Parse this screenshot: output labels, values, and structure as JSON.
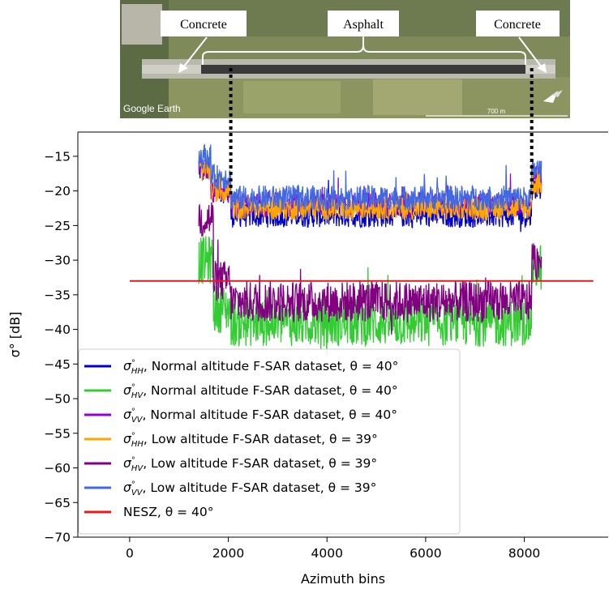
{
  "photo": {
    "labels": {
      "left": "Concrete",
      "middle": "Asphalt",
      "right": "Concrete"
    },
    "watermark": "Google Earth",
    "scale_label": "700 m"
  },
  "chart_data": {
    "type": "line",
    "xlabel": "Azimuth bins",
    "ylabel": "σ° [dB]",
    "xlim": [
      -1050,
      9700
    ],
    "ylim": [
      -70,
      -11.5
    ],
    "xticks": [
      0,
      2000,
      4000,
      6000,
      8000
    ],
    "yticks": [
      -15,
      -20,
      -25,
      -30,
      -35,
      -40,
      -45,
      -50,
      -55,
      -60,
      -65,
      -70
    ],
    "x_range": [
      1400,
      8350
    ],
    "legend_position": "lower-left",
    "vertical_dotted_markers_x": [
      2050,
      8150
    ],
    "series": [
      {
        "name": "σ°HH, Normal altitude F-SAR dataset, θ = 40°",
        "legend_sub": "HH",
        "legend_text": ", Normal altitude F-SAR dataset, ",
        "legend_theta": "θ = 40°",
        "color": "#0000cd",
        "segments": [
          [
            1400,
            1650,
            -17
          ],
          [
            1650,
            2050,
            -20
          ],
          [
            2050,
            8150,
            -23.5
          ],
          [
            8150,
            8350,
            -19.5
          ]
        ],
        "spread": 1.8
      },
      {
        "name": "σ°HV, Normal altitude F-SAR dataset, θ = 40°",
        "legend_sub": "HV",
        "legend_text": ", Normal altitude F-SAR dataset, ",
        "legend_theta": "θ = 40°",
        "color": "#33cc33",
        "segments": [
          [
            1400,
            1700,
            -30
          ],
          [
            1700,
            2050,
            -37
          ],
          [
            2050,
            8150,
            -39
          ],
          [
            8150,
            8350,
            -31
          ]
        ],
        "spread": 3.5
      },
      {
        "name": "σ°VV, Normal altitude F-SAR dataset, θ = 40°",
        "legend_sub": "VV",
        "legend_text": ", Normal altitude F-SAR dataset, ",
        "legend_theta": "θ = 40°",
        "color": "#9400d3",
        "segments": [
          [
            1400,
            1650,
            -17
          ],
          [
            1650,
            2050,
            -20
          ],
          [
            2050,
            8150,
            -22
          ],
          [
            8150,
            8350,
            -18
          ]
        ],
        "spread": 1.8
      },
      {
        "name": "σ°HH, Low altitude F-SAR dataset, θ = 39°",
        "legend_sub": "HH",
        "legend_text": ", Low altitude F-SAR dataset, ",
        "legend_theta": "θ = 39°",
        "color": "#ffa500",
        "segments": [
          [
            1400,
            1650,
            -17
          ],
          [
            1650,
            2050,
            -20
          ],
          [
            2050,
            8150,
            -22.5
          ],
          [
            8150,
            8350,
            -19
          ]
        ],
        "spread": 1.7
      },
      {
        "name": "σ°HV, Low altitude F-SAR dataset, θ = 39°",
        "legend_sub": "HV",
        "legend_text": ", Low altitude F-SAR dataset, ",
        "legend_theta": "θ = 39°",
        "color": "#800080",
        "segments": [
          [
            1400,
            1700,
            -24
          ],
          [
            1700,
            2050,
            -33
          ],
          [
            2050,
            8150,
            -36
          ],
          [
            8150,
            8350,
            -30
          ]
        ],
        "spread": 3.0
      },
      {
        "name": "σ°VV, Low altitude F-SAR dataset, θ = 39°",
        "legend_sub": "VV",
        "legend_text": ", Low altitude F-SAR dataset, ",
        "legend_theta": "θ = 39°",
        "color": "#4169e1",
        "segments": [
          [
            1400,
            1650,
            -15
          ],
          [
            1650,
            2050,
            -18
          ],
          [
            2050,
            8150,
            -21
          ],
          [
            8150,
            8350,
            -17
          ]
        ],
        "spread": 1.8
      },
      {
        "name": "NESZ, θ = 40°",
        "legend_text": "NESZ, ",
        "legend_theta": "θ = 40°",
        "color": "#e41a1c",
        "x": [
          0,
          9400
        ],
        "values": [
          -33,
          -33
        ]
      }
    ]
  }
}
